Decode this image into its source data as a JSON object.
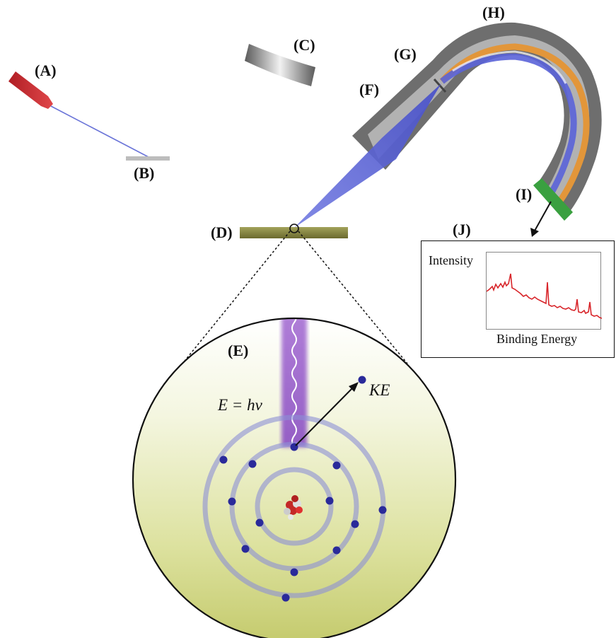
{
  "labels": {
    "A": "(A)",
    "B": "(B)",
    "C": "(C)",
    "D": "(D)",
    "E": "(E)",
    "F": "(F)",
    "G": "(G)",
    "H": "(H)",
    "I": "(I)",
    "J": "(J)"
  },
  "equation": "E = hν",
  "kinetic_energy": "KE",
  "spectrum": {
    "y_label": "Intensity",
    "x_label": "Binding Energy"
  },
  "colors": {
    "x_ray_source": "#c0282c",
    "photon_beam": "#5a63d8",
    "analyzer_gray": "#7a7a7a",
    "analyzer_orange": "#e2963a",
    "detector": "#3aa040",
    "sample": "#7f7d3c",
    "electron": "#2a2a9a",
    "spectrum_line": "#d8252a"
  }
}
